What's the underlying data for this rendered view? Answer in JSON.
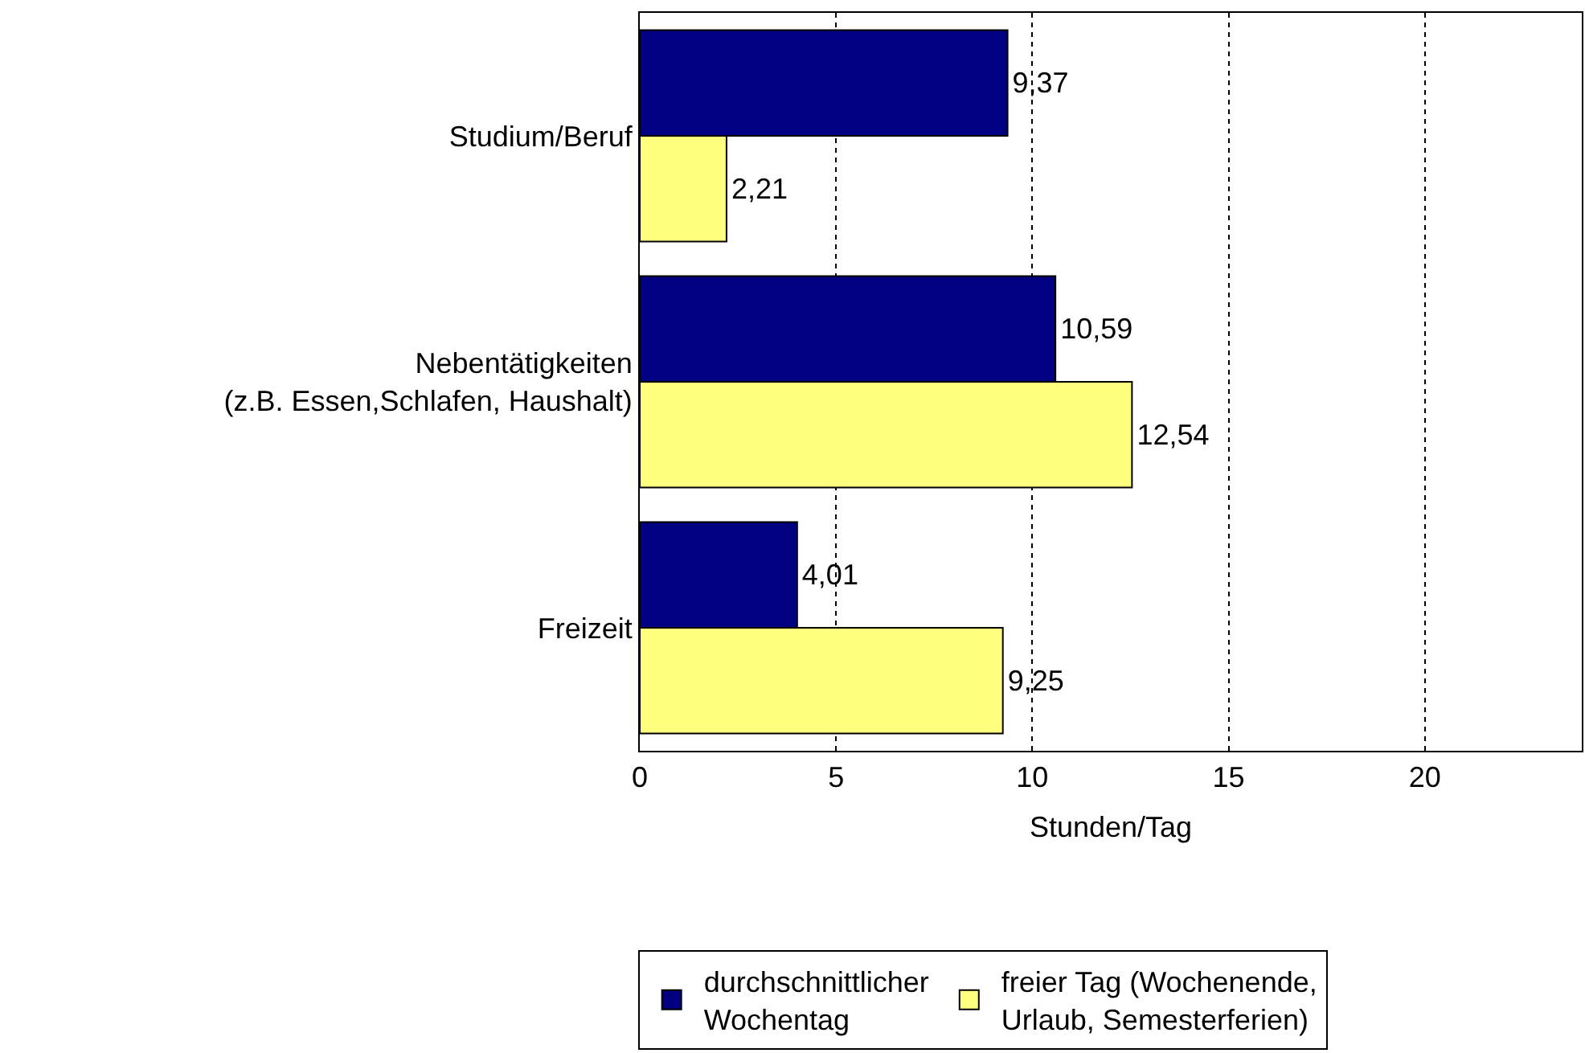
{
  "chart_data": {
    "type": "bar",
    "orientation": "horizontal",
    "xlabel": "Stunden/Tag",
    "categories": [
      "Studium/Beruf",
      "Nebentätigkeiten\n(z.B. Essen,Schlafen, Haushalt)",
      "Freizeit"
    ],
    "series": [
      {
        "name": "durchschnittlicher\nWochentag",
        "color": "#000080",
        "values": [
          9.37,
          10.59,
          4.01
        ],
        "value_labels": [
          "9,37",
          "10,59",
          "4,01"
        ]
      },
      {
        "name": "freier Tag (Wochenende,\nUrlaub, Semesterferien)",
        "color": "#ffff80",
        "values": [
          2.21,
          12.54,
          9.25
        ],
        "value_labels": [
          "2,21",
          "12,54",
          "9,25"
        ]
      }
    ],
    "xlim": [
      0,
      24
    ],
    "xticks": [
      0,
      5,
      10,
      15,
      20
    ],
    "grid": "x",
    "legend": "bottom"
  }
}
